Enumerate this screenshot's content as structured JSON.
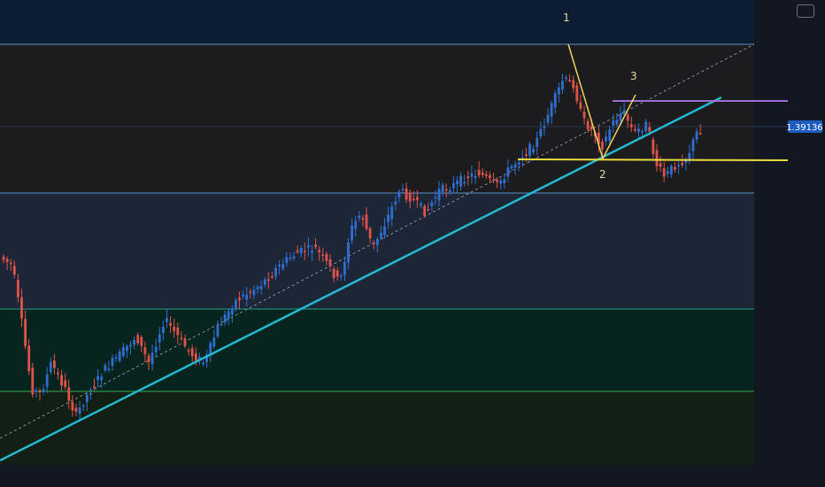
{
  "chart_data": {
    "type": "candlestick",
    "price_label": "1.39136",
    "wave_labels": [
      "1",
      "2",
      "3"
    ],
    "colors": {
      "up": "#2f6fd0",
      "down": "#e0534a",
      "trendline": "#22b8cf",
      "support": "#e9dc3c",
      "resistance": "#9b6fd1",
      "wave": "#f0d35a",
      "price_tag": "#1e5bbf",
      "zone_top": "#0c1d33",
      "zone_dark": "#1c1c1e",
      "zone_mid": "#1c2637",
      "zone_teal": "#08241f",
      "zone_green": "#111f14",
      "zone_line_blue": "#5b8ec4",
      "zone_line_teal": "#1ea38a",
      "zone_line_green": "#3cab4f"
    }
  }
}
